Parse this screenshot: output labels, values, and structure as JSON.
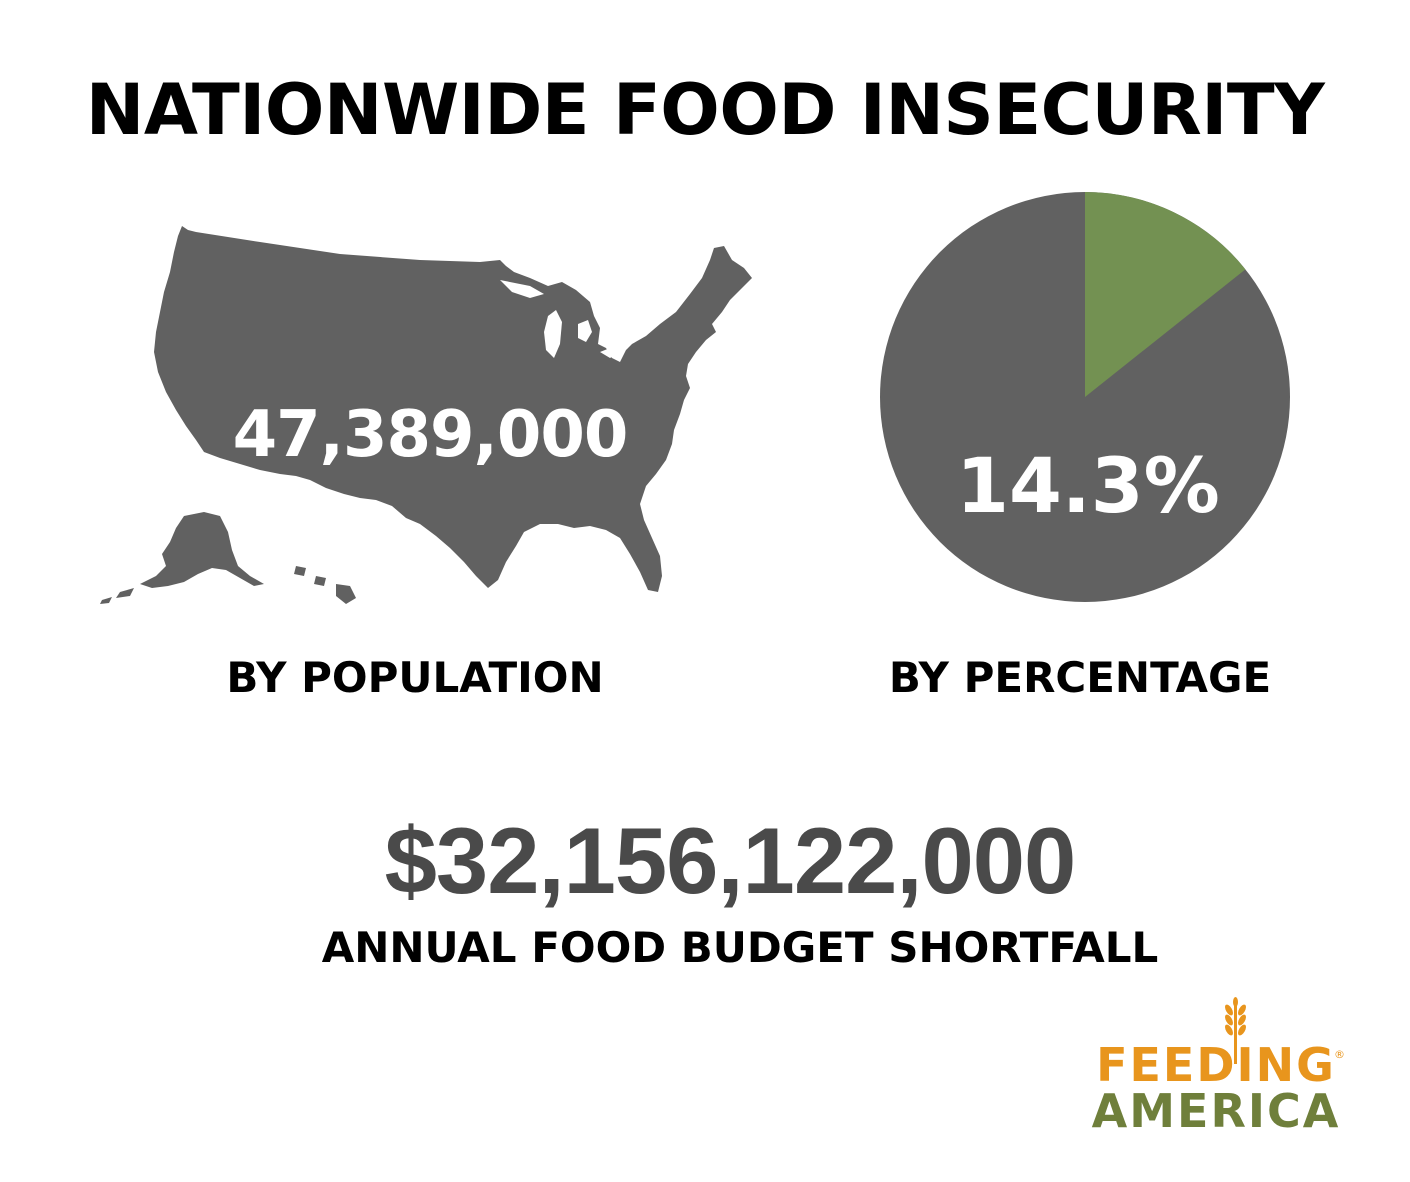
{
  "title": "NATIONWIDE FOOD INSECURITY",
  "population": {
    "value": "47,389,000",
    "label": "BY POPULATION"
  },
  "percentage": {
    "value": "14.3%",
    "label": "BY PERCENTAGE",
    "fraction": 0.143
  },
  "shortfall": {
    "value": "$32,156,122,000",
    "label": "ANNUAL FOOD BUDGET SHORTFALL"
  },
  "logo": {
    "line1": "FEEDING",
    "line2": "AMERICA",
    "registered": "®"
  },
  "colors": {
    "gray": "#616161",
    "green": "#739152",
    "logo_orange": "#e8951d",
    "logo_green": "#6f7f3b"
  },
  "icons": {
    "map": "usa-map-icon",
    "pie": "pie-chart-icon",
    "wheat": "wheat-icon"
  }
}
